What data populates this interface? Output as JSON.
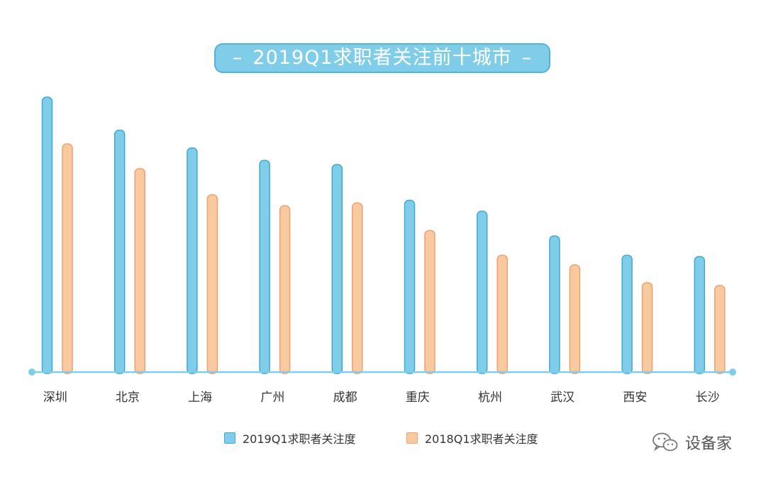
{
  "title": "2019Q1求职者关注前十城市",
  "title_dash": "–",
  "watermark": "设备家",
  "watermark_icon": "wechat-icon",
  "colors": {
    "series_2019_fill": "#7fcde8",
    "series_2019_stroke": "#3fa9d6",
    "series_2018_fill": "#f9c9a0",
    "series_2018_stroke": "#f0a070",
    "axis": "#7fcde8",
    "text": "#333333"
  },
  "legend": [
    {
      "label": "2019Q1求职者关注度"
    },
    {
      "label": "2018Q1求职者关注度"
    }
  ],
  "chart_data": {
    "type": "bar",
    "categories": [
      "深圳",
      "北京",
      "上海",
      "广州",
      "成都",
      "重庆",
      "杭州",
      "武汉",
      "西安",
      "长沙"
    ],
    "series": [
      {
        "name": "2019Q1求职者关注度",
        "values": [
          100,
          88,
          81.5,
          77,
          75.5,
          62.5,
          58.5,
          49.5,
          42.5,
          42
        ]
      },
      {
        "name": "2018Q1求职者关注度",
        "values": [
          83,
          74,
          64.5,
          60.5,
          61.5,
          51.5,
          42.5,
          39,
          32.5,
          31.5
        ]
      }
    ],
    "ylim": [
      0,
      100
    ],
    "grid": false,
    "legend_position": "bottom"
  }
}
